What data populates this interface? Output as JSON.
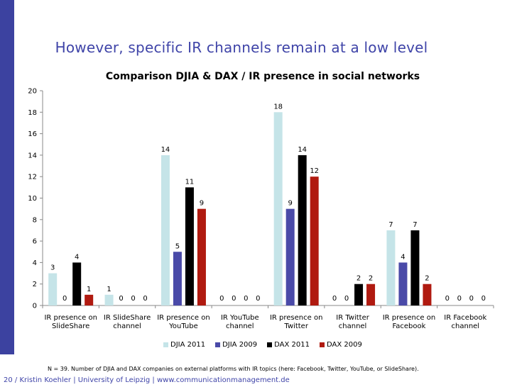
{
  "slide": {
    "title": "However, specific IR channels remain at a low level",
    "footnote": "N = 39. Number of DJIA and DAX companies on external platforms with IR topics (here: Facebook, Twitter, YouTube, or SlideShare).",
    "footer": "20 / Kristin Koehler | University of Leipzig  | www.communicationmanagement.de"
  },
  "colors": {
    "accent": "#3c42a0",
    "djia2011": "#c5e4e8",
    "djia2009": "#4a4aa8",
    "dax2011": "#000000",
    "dax2009": "#b01a10"
  },
  "chart_data": {
    "type": "bar",
    "title": "Comparison DJIA & DAX / IR presence in social networks",
    "categories": [
      [
        "IR presence on",
        "SlideShare"
      ],
      [
        "IR SlideShare",
        "channel"
      ],
      [
        "IR presence on",
        "YouTube"
      ],
      [
        "IR YouTube",
        "channel"
      ],
      [
        "IR presence on",
        "Twitter"
      ],
      [
        "IR Twitter",
        "channel"
      ],
      [
        "IR presence on",
        "Facebook"
      ],
      [
        "IR Facebook",
        "channel"
      ]
    ],
    "series": [
      {
        "name": "DJIA 2011",
        "color_key": "djia2011",
        "values": [
          3,
          1,
          14,
          0,
          18,
          0,
          7,
          0
        ]
      },
      {
        "name": "DJIA 2009",
        "color_key": "djia2009",
        "values": [
          0,
          0,
          5,
          0,
          9,
          0,
          4,
          0
        ]
      },
      {
        "name": "DAX 2011",
        "color_key": "dax2011",
        "values": [
          4,
          0,
          11,
          0,
          14,
          2,
          7,
          0
        ]
      },
      {
        "name": "DAX 2009",
        "color_key": "dax2009",
        "values": [
          1,
          0,
          9,
          0,
          12,
          2,
          2,
          0
        ]
      }
    ],
    "y_ticks": [
      "0",
      "2",
      "4",
      "6",
      "8",
      "10",
      "12",
      "14",
      "16",
      "18",
      "20"
    ],
    "ylim": [
      0,
      20
    ],
    "xlabel": "",
    "ylabel": "",
    "legend_position": "bottom",
    "grid": false
  }
}
